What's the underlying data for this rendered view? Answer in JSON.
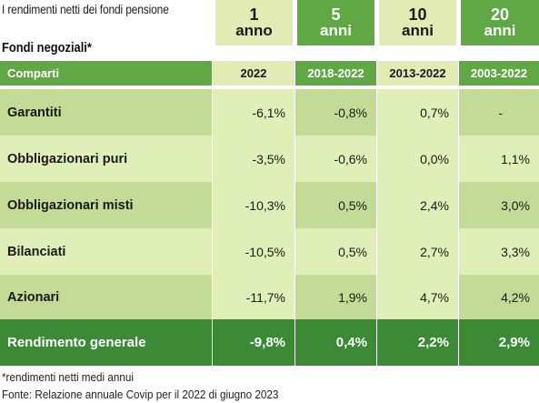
{
  "title": "I rendimenti netti dei fondi pensione",
  "section": "Fondi negoziali*",
  "periods": [
    {
      "num": "1",
      "unit": "anno",
      "years": "2022"
    },
    {
      "num": "5",
      "unit": "anni",
      "years": "2018-2022"
    },
    {
      "num": "10",
      "unit": "anni",
      "years": "2013-2022"
    },
    {
      "num": "20",
      "unit": "anni",
      "years": "2003-2022"
    }
  ],
  "header_label": "Comparti",
  "rows": [
    {
      "label": "Garantiti",
      "values": [
        "-6,1%",
        "-0,8%",
        "0,7%",
        "-"
      ]
    },
    {
      "label": "Obbligazionari puri",
      "values": [
        "-3,5%",
        "-0,6%",
        "0,0%",
        "1,1%"
      ]
    },
    {
      "label": "Obbligazionari misti",
      "values": [
        "-10,3%",
        "0,5%",
        "2,4%",
        "3,0%"
      ]
    },
    {
      "label": "Bilanciati",
      "values": [
        "-10,5%",
        "0,5%",
        "2,7%",
        "3,3%"
      ]
    },
    {
      "label": "Azionari",
      "values": [
        "-11,7%",
        "1,9%",
        "4,7%",
        "4,2%"
      ]
    }
  ],
  "total": {
    "label": "Rendimento generale",
    "values": [
      "-9,8%",
      "0,4%",
      "2,2%",
      "2,9%"
    ]
  },
  "footnote": "*rendimenti netti medi annui",
  "source": "Fonte: Relazione annuale Covip per il 2022 di giugno 2023",
  "colors": {
    "light": "#e0eeb7",
    "mid": "#c3db96",
    "accent": "#5fa843",
    "dark": "#3c8a35",
    "pale": "#e3ebb4"
  }
}
